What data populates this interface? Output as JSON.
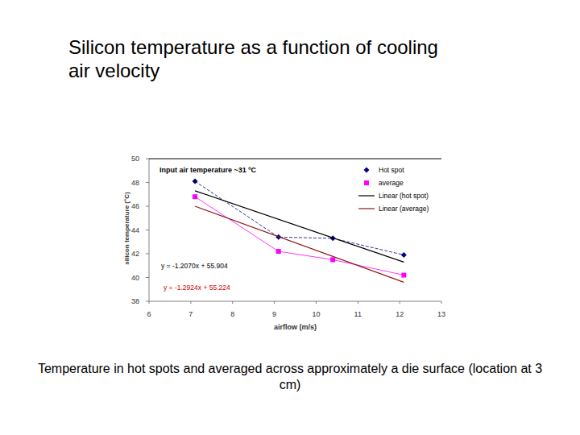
{
  "chart_data": {
    "type": "line",
    "title": "Silicon temperature as a function of cooling air velocity",
    "caption": "Temperature in hot spots and averaged across approximately a die surface (location at 3 cm)",
    "x_label": "airflow (m/s)",
    "y_label": "silicon temperature (°C)",
    "annotations": [
      "Input air temperature ~31 ºC",
      "y = -1.2070x + 55.904",
      "y = -1.2924x + 55.224"
    ],
    "xlim": [
      6,
      13
    ],
    "xticks": [
      6,
      7,
      8,
      9,
      10,
      11,
      12,
      13
    ],
    "ylim": [
      38,
      50
    ],
    "yticks": [
      38,
      40,
      42,
      44,
      46,
      48,
      50
    ],
    "grid": false,
    "legend": "top-right",
    "series": [
      {
        "name": "Hot spot",
        "color": "#000080",
        "marker": "diamond",
        "line_style": "dashed",
        "x": [
          7.1,
          9.1,
          10.4,
          12.1
        ],
        "values": [
          48.1,
          43.4,
          43.3,
          41.9
        ]
      },
      {
        "name": "average",
        "color": "#ff00ff",
        "marker": "square",
        "line_style": "solid",
        "x": [
          7.1,
          9.1,
          10.4,
          12.1
        ],
        "values": [
          46.8,
          42.2,
          41.5,
          40.2
        ]
      },
      {
        "name": "Linear (hot spot)",
        "color": "#000000",
        "marker": "none",
        "line_style": "solid",
        "x": [
          7.1,
          12.1
        ],
        "values": [
          47.3,
          41.3
        ]
      },
      {
        "name": "Linear (average)",
        "color": "#8b1a1a",
        "marker": "none",
        "line_style": "solid",
        "x": [
          7.1,
          12.1
        ],
        "values": [
          46.0,
          39.6
        ]
      }
    ]
  }
}
